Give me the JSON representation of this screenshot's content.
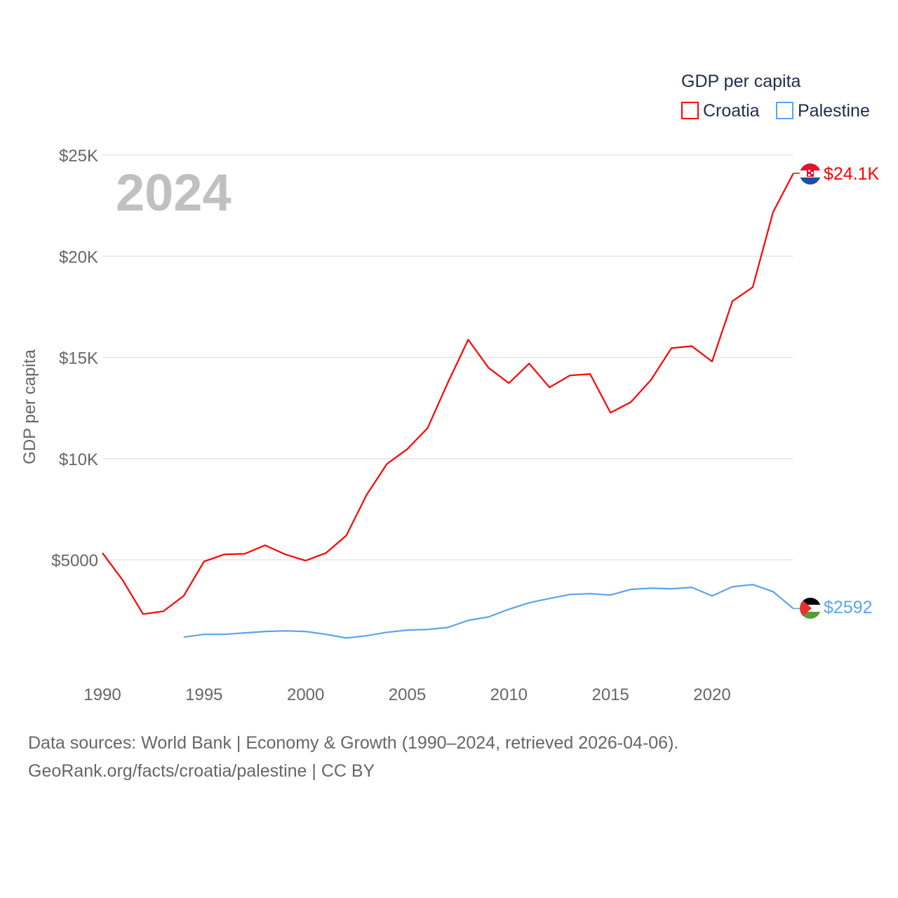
{
  "chart_data": {
    "type": "line",
    "title": "GDP per capita",
    "year_label": "2024",
    "ylabel": "GDP per capita",
    "xlabel": "",
    "xlim": [
      1990,
      2024
    ],
    "ylim": [
      0,
      25000
    ],
    "grid": true,
    "legend_position": "top-right",
    "x_ticks": [
      1990,
      1995,
      2000,
      2005,
      2010,
      2015,
      2020
    ],
    "y_ticks": [
      {
        "value": 5000,
        "label": "$5000"
      },
      {
        "value": 10000,
        "label": "$10K"
      },
      {
        "value": 15000,
        "label": "$15K"
      },
      {
        "value": 20000,
        "label": "$20K"
      },
      {
        "value": 25000,
        "label": "$25K"
      }
    ],
    "series": [
      {
        "name": "Croatia",
        "color": "#ff0000",
        "end_label": "$24.1K",
        "flag": "croatia-flag",
        "x": [
          1990,
          1991,
          1992,
          1993,
          1994,
          1995,
          1996,
          1997,
          1998,
          1999,
          2000,
          2001,
          2002,
          2003,
          2004,
          2005,
          2006,
          2007,
          2008,
          2009,
          2010,
          2011,
          2012,
          2013,
          2014,
          2015,
          2016,
          2017,
          2018,
          2019,
          2020,
          2021,
          2022,
          2023,
          2024
        ],
        "values": [
          5340,
          3990,
          2320,
          2460,
          3220,
          4920,
          5270,
          5300,
          5720,
          5270,
          4960,
          5340,
          6200,
          8210,
          9740,
          10470,
          11510,
          13760,
          15880,
          14490,
          13730,
          14700,
          13520,
          14110,
          14180,
          12270,
          12790,
          13900,
          15460,
          15560,
          14800,
          17780,
          18470,
          22180,
          24100
        ]
      },
      {
        "name": "Palestine",
        "color": "#5ba4ee",
        "end_label": "$2592",
        "flag": "palestine-flag",
        "x": [
          1994,
          1995,
          1996,
          1997,
          1998,
          1999,
          2000,
          2001,
          2002,
          2003,
          2004,
          2005,
          2006,
          2007,
          2008,
          2009,
          2010,
          2011,
          2012,
          2013,
          2014,
          2015,
          2016,
          2017,
          2018,
          2019,
          2020,
          2021,
          2022,
          2023,
          2024
        ],
        "values": [
          1180,
          1320,
          1320,
          1390,
          1460,
          1490,
          1460,
          1320,
          1140,
          1250,
          1420,
          1530,
          1560,
          1660,
          2010,
          2180,
          2560,
          2880,
          3090,
          3290,
          3330,
          3260,
          3540,
          3600,
          3570,
          3640,
          3220,
          3670,
          3780,
          3430,
          2592
        ]
      }
    ]
  },
  "footer": {
    "line1": "Data sources: World Bank | Economy & Growth (1990–2024, retrieved 2026-04-06).",
    "line2": "GeoRank.org/facts/croatia/palestine | CC BY"
  }
}
